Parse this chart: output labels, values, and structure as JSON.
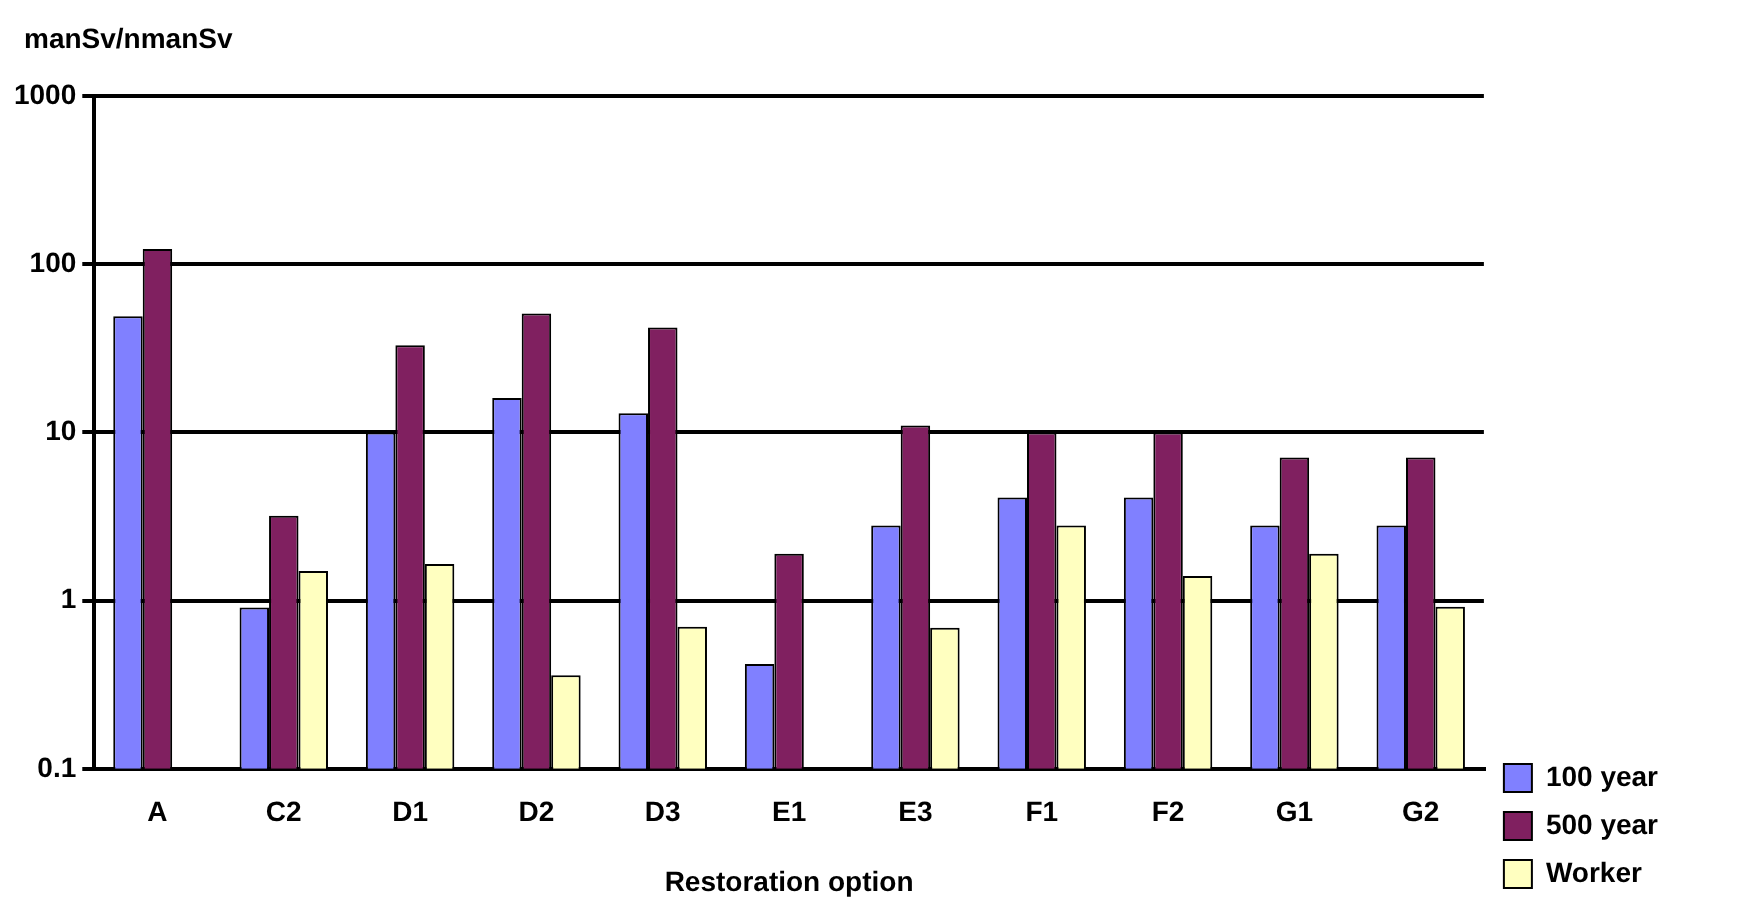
{
  "chart_data": {
    "type": "bar",
    "ylabel": "manSv/nmanSv",
    "xlabel": "Restoration option",
    "categories": [
      "A",
      "C2",
      "D1",
      "D2",
      "D3",
      "E1",
      "E3",
      "F1",
      "F2",
      "G1",
      "G2"
    ],
    "series": [
      {
        "name": "100 year",
        "color": "#8080ff",
        "values": [
          49,
          0.91,
          10,
          16,
          13,
          0.42,
          2.8,
          4.1,
          4.1,
          2.8,
          2.8
        ]
      },
      {
        "name": "500 year",
        "color": "#802060",
        "values": [
          123,
          3.2,
          33,
          51,
          42,
          1.9,
          11,
          10,
          10,
          7.1,
          7.1
        ]
      },
      {
        "name": "Worker",
        "color": "#ffffc0",
        "values": [
          null,
          1.5,
          1.65,
          0.36,
          0.7,
          null,
          0.69,
          2.8,
          1.4,
          1.9,
          0.92
        ]
      }
    ],
    "log": true,
    "ylim": [
      0.1,
      1000
    ],
    "yticks": [
      0.1,
      1,
      10,
      100,
      1000
    ],
    "grid": "y",
    "legend": "right"
  }
}
